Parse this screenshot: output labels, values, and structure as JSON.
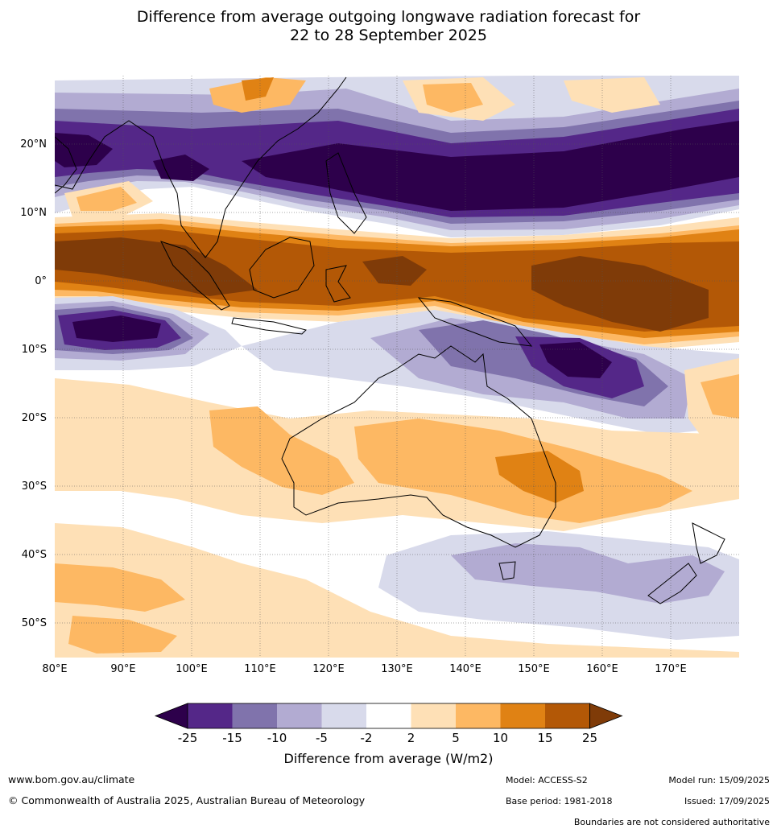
{
  "title_line1": "Difference from average outgoing longwave radiation forecast for",
  "title_line2": "22 to 28 September 2025",
  "lat_labels": [
    "20°N",
    "10°N",
    "0°",
    "10°S",
    "20°S",
    "30°S",
    "40°S",
    "50°S"
  ],
  "lon_labels": [
    "80°E",
    "90°E",
    "100°E",
    "110°E",
    "120°E",
    "130°E",
    "140°E",
    "150°E",
    "160°E",
    "170°E"
  ],
  "colorbar": {
    "ticks": [
      "-25",
      "-15",
      "-10",
      "-5",
      "-2",
      "2",
      "5",
      "10",
      "15",
      "25"
    ],
    "colors": [
      "#2d004b",
      "#542788",
      "#8073ac",
      "#b2abd2",
      "#d8daeb",
      "#ffffff",
      "#fee0b6",
      "#fdb863",
      "#e08214",
      "#b35806",
      "#7f3b08"
    ],
    "label": "Difference from average (W/m2)"
  },
  "footer": {
    "url": "www.bom.gov.au/climate",
    "copyright": "© Commonwealth of Australia 2025, Australian Bureau of Meteorology",
    "model": "Model: ACCESS-S2",
    "base_period": "Base period: 1981-2018",
    "model_run": "Model run: 15/09/2025",
    "issued": "Issued: 17/09/2025",
    "disclaimer": "Boundaries are not considered authoritative"
  }
}
